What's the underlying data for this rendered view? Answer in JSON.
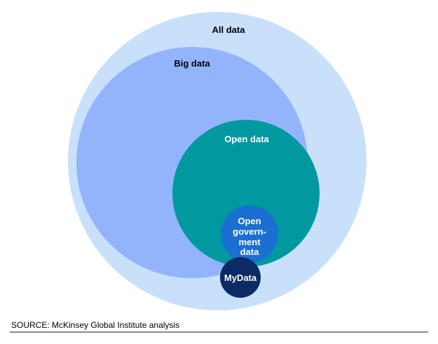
{
  "diagram": {
    "sets": [
      {
        "id": "all",
        "label": "All data",
        "fill": "#c9e0fb",
        "text_color": "#000000"
      },
      {
        "id": "big",
        "label": "Big data",
        "fill": "#93b4fb",
        "text_color": "#000000"
      },
      {
        "id": "open",
        "label": "Open data",
        "fill": "#0099a0",
        "text_color": "#ffffff"
      },
      {
        "id": "gov",
        "label_lines": [
          "Open",
          "govern-",
          "ment",
          "data"
        ],
        "fill": "#1a6fd0",
        "text_color": "#ffffff"
      },
      {
        "id": "mydata",
        "label": "MyData",
        "fill": "#0c2a63",
        "text_color": "#ffffff"
      }
    ]
  },
  "footer": {
    "source": "SOURCE: McKinsey Global Institute analysis"
  }
}
